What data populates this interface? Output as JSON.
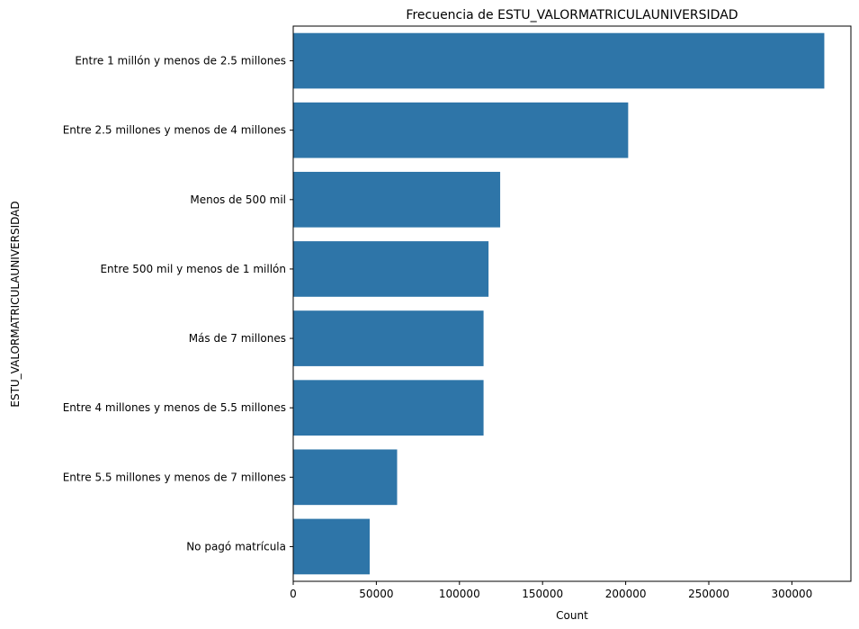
{
  "chart_data": {
    "type": "bar",
    "orientation": "horizontal",
    "title": "Frecuencia de ESTU_VALORMATRICULAUNIVERSIDAD",
    "xlabel": "Count",
    "ylabel": "ESTU_VALORMATRICULAUNIVERSIDAD",
    "categories": [
      "Entre 1 millón y menos de 2.5 millones",
      "Entre 2.5 millones y menos de 4 millones",
      "Menos de 500 mil",
      "Entre 500 mil y menos de 1 millón",
      "Más de 7 millones",
      "Entre 4 millones y menos de 5.5 millones",
      "Entre 5.5 millones y menos de 7 millones",
      "No pagó matrícula"
    ],
    "values": [
      319500,
      201500,
      124500,
      117500,
      114500,
      114500,
      62500,
      46000
    ],
    "xlim": [
      0,
      335500
    ],
    "xticks": [
      0,
      50000,
      100000,
      150000,
      200000,
      250000,
      300000
    ],
    "grid": false,
    "bar_color": "#2e75a8"
  }
}
